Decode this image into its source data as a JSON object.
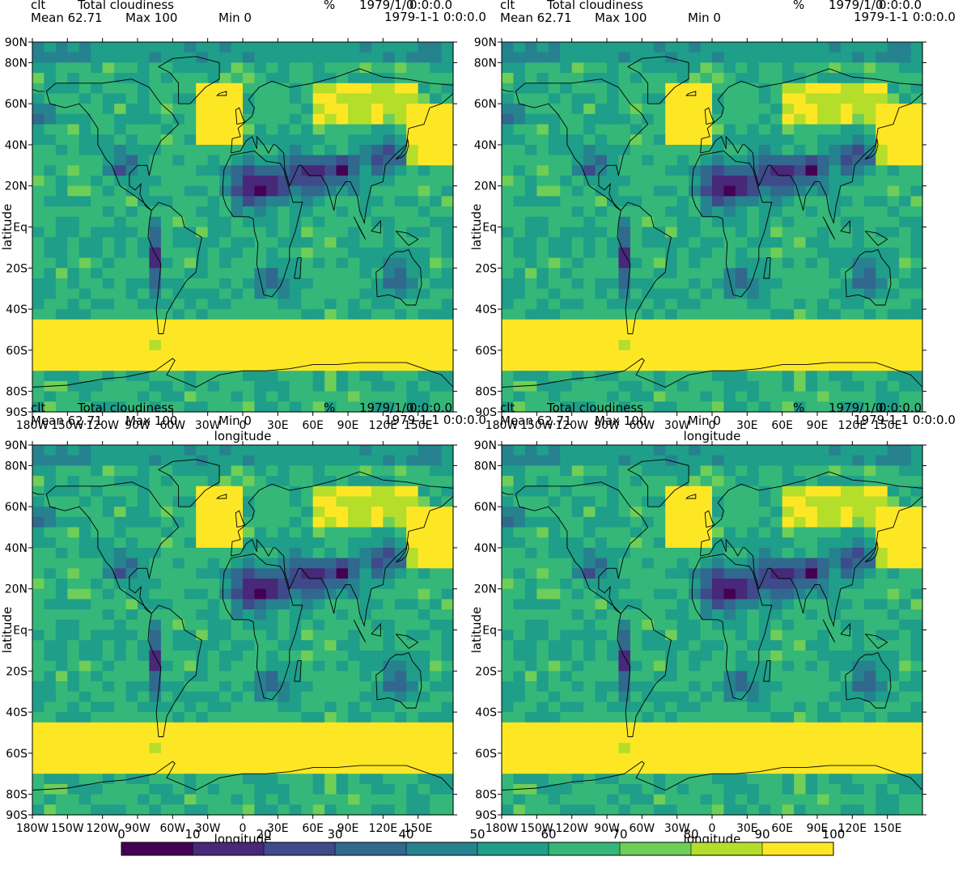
{
  "chart_data": {
    "type": "heatmap",
    "variable": "clt",
    "long_name": "Total cloudiness",
    "units": "%",
    "time_label": "1979/1/0",
    "time_value": "0:0:0.0",
    "date_label": "1979-1-1 0:0:0.0",
    "mean_text": "Mean 62.71",
    "max_text": "Max 100",
    "min_text": "Min 0",
    "mean": 62.71,
    "max": 100,
    "min": 0,
    "xlabel": "longitude",
    "ylabel": "latitude",
    "xlim": [
      -180,
      180
    ],
    "ylim": [
      -90,
      90
    ],
    "xticks": [
      "180W",
      "150W",
      "120W",
      "90W",
      "60W",
      "30W",
      "0",
      "30E",
      "60E",
      "90E",
      "120E",
      "150E"
    ],
    "xtick_values": [
      -180,
      -150,
      -120,
      -90,
      -60,
      -30,
      0,
      30,
      60,
      90,
      120,
      150
    ],
    "yticks": [
      "90N",
      "80N",
      "60N",
      "40N",
      "20N",
      "Eq",
      "20S",
      "40S",
      "60S",
      "80S",
      "90S"
    ],
    "ytick_values": [
      90,
      80,
      60,
      40,
      20,
      0,
      -20,
      -40,
      -60,
      -80,
      -90
    ],
    "colorbar": {
      "labels": [
        "0",
        "10",
        "20",
        "30",
        "40",
        "50",
        "60",
        "70",
        "80",
        "90",
        "100"
      ],
      "values": [
        0,
        10,
        20,
        30,
        40,
        50,
        60,
        70,
        80,
        90,
        100
      ],
      "colors": [
        "#440154",
        "#482878",
        "#3e4a89",
        "#31688e",
        "#26828e",
        "#1f9e89",
        "#35b779",
        "#6ece58",
        "#b5de2b",
        "#fde725"
      ]
    },
    "panels": [
      {
        "name": "panel-top-left"
      },
      {
        "name": "panel-top-right"
      },
      {
        "name": "panel-bottom-left"
      },
      {
        "name": "panel-bottom-right"
      }
    ]
  }
}
